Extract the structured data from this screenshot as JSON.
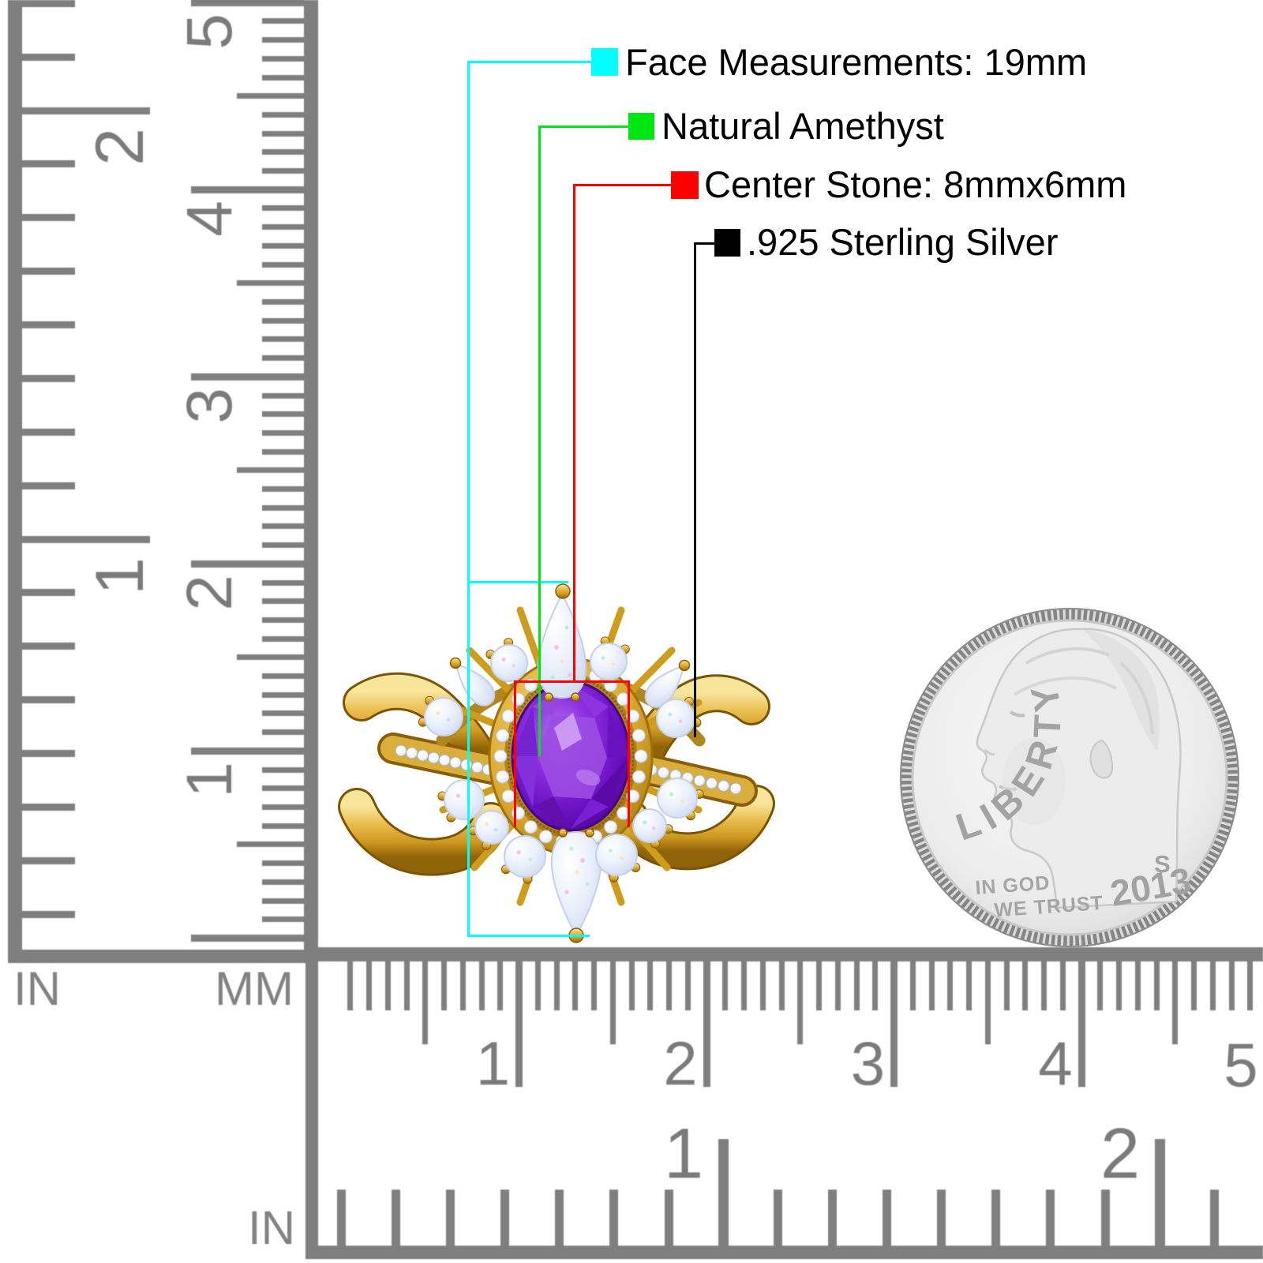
{
  "annotations": {
    "items": [
      {
        "id": "face",
        "label": "Face Measurements: 19mm",
        "color": "#00ffff"
      },
      {
        "id": "amethyst",
        "label": "Natural Amethyst",
        "color": "#00e613"
      },
      {
        "id": "stone",
        "label": "Center Stone: 8mmx6mm",
        "color": "#ff0000"
      },
      {
        "id": "metal",
        "label": ".925 Sterling Silver",
        "color": "#000000"
      }
    ]
  },
  "rulers": {
    "color": "#7f7f7f",
    "left_inch": {
      "unit": "IN",
      "numbers": [
        "2",
        "1"
      ]
    },
    "left_cm": {
      "unit": "MM",
      "numbers": [
        "5",
        "4",
        "3",
        "2",
        "1"
      ]
    },
    "bottom_cm": {
      "numbers": [
        "1",
        "2",
        "3",
        "4",
        "5"
      ]
    },
    "bottom_inch": {
      "unit": "IN",
      "numbers": [
        "1",
        "2"
      ]
    }
  },
  "coin": {
    "legend": "LIBERTY",
    "motto_line1": "IN GOD",
    "motto_line2": "WE TRUST",
    "year": "2013",
    "mint_mark": "S"
  },
  "ring": {
    "band_color": "#d9a620",
    "center_stone_color": "#7a1fd0",
    "halo_stone_color": "#e8eefb",
    "accent_diamond_color": "#f0f4fb"
  }
}
